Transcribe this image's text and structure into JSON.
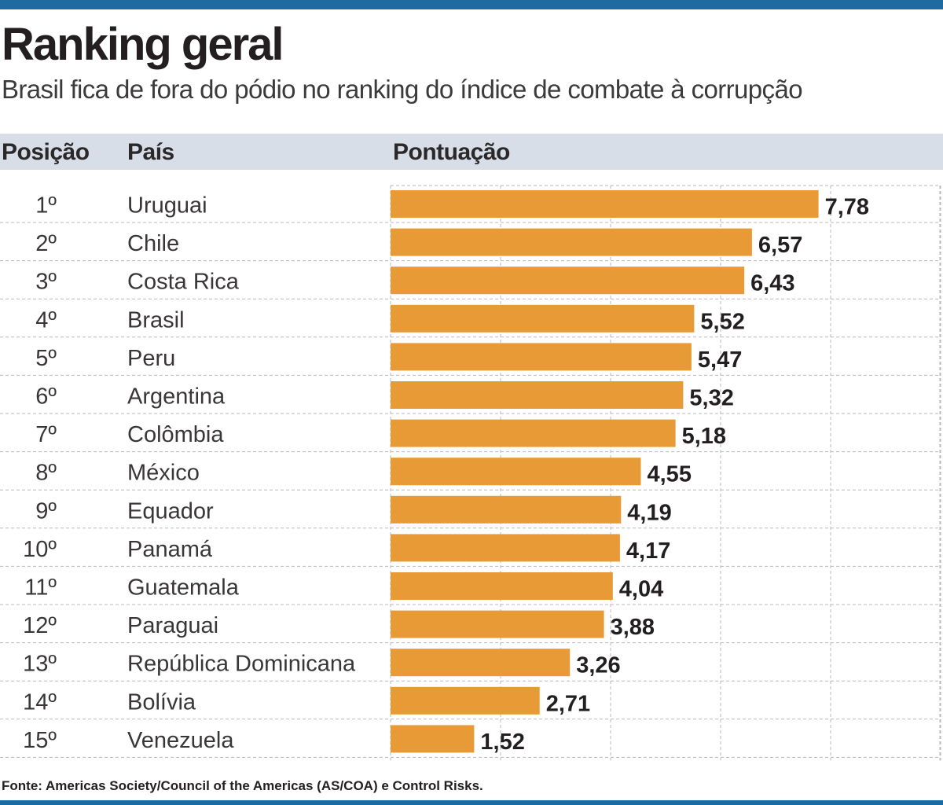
{
  "title": "Ranking geral",
  "subtitle": "Brasil fica de fora do pódio no ranking do índice de combate à corrupção",
  "headers": {
    "position": "Posição",
    "country": "País",
    "score": "Pontuação"
  },
  "source": "Fonte:  Americas Society/Council of the Americas (AS/COA) e Control Risks.",
  "colors": {
    "bar": "#e89a36",
    "header_band": "#d7dee7",
    "accent_bar": "#1f6aa1"
  },
  "chart_data": {
    "type": "bar",
    "orientation": "horizontal",
    "positions": [
      "1º",
      "2º",
      "3º",
      "4º",
      "5º",
      "6º",
      "7º",
      "8º",
      "9º",
      "10º",
      "11º",
      "12º",
      "13º",
      "14º",
      "15º"
    ],
    "categories": [
      "Uruguai",
      "Chile",
      "Costa Rica",
      "Brasil",
      "Peru",
      "Argentina",
      "Colômbia",
      "México",
      "Equador",
      "Panamá",
      "Guatemala",
      "Paraguai",
      "República Dominicana",
      "Bolívia",
      "Venezuela"
    ],
    "values": [
      7.78,
      6.57,
      6.43,
      5.52,
      5.47,
      5.32,
      5.18,
      4.55,
      4.19,
      4.17,
      4.04,
      3.88,
      3.26,
      2.71,
      1.52
    ],
    "value_labels": [
      "7,78",
      "6,57",
      "6,43",
      "5,52",
      "5,47",
      "5,32",
      "5,18",
      "4,55",
      "4,19",
      "4,17",
      "4,04",
      "3,88",
      "3,26",
      "2,71",
      "1,52"
    ],
    "xlim": [
      0,
      10
    ],
    "grid": true
  }
}
